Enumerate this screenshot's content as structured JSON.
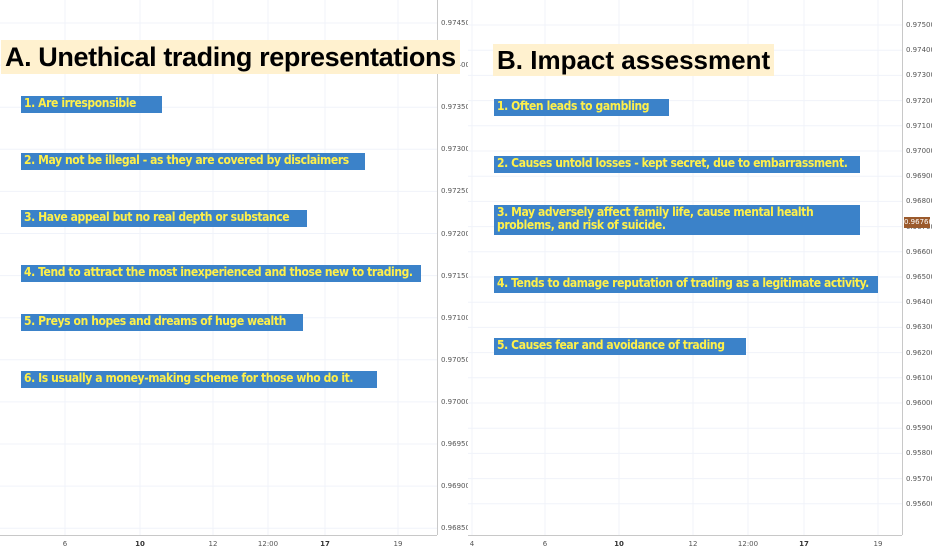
{
  "panel_a": {
    "title": "A. Unethical trading representations",
    "items": [
      "1. Are irresponsible",
      "2. May not be illegal - as they are covered by disclaimers",
      "3. Have appeal but no real  depth or substance",
      "4. Tend to attract the most inexperienced and those new to trading.",
      "5. Preys on hopes and dreams of huge wealth",
      "6. Is usually a money-making scheme for those who do it."
    ],
    "y_axis_ticks": [
      "0.97450",
      "0.97400",
      "0.97350",
      "0.97300",
      "0.97250",
      "0.97200",
      "0.97150",
      "0.97100",
      "0.97050",
      "0.97000",
      "0.96950",
      "0.96900",
      "0.96850"
    ],
    "x_axis_ticks": [
      "6",
      "10",
      "12",
      "12:00",
      "17",
      "19"
    ]
  },
  "panel_b": {
    "title": "B. Impact assessment",
    "items": [
      "1. Often leads to gambling",
      "2. Causes untold losses - kept secret, due to embarrassment.",
      "3. May adversely affect family life, cause mental health problems, and risk of suicide.",
      "4. Tends to damage reputation of trading as a legitimate activity.",
      "5. Causes fear and avoidance of trading"
    ],
    "y_axis_ticks": [
      "0.97500",
      "0.97400",
      "0.97300",
      "0.97200",
      "0.97100",
      "0.97000",
      "0.96900",
      "0.96800",
      "0.96700",
      "0.96600",
      "0.96500",
      "0.96400",
      "0.96300",
      "0.96200",
      "0.96100",
      "0.96000",
      "0.95900",
      "0.95800",
      "0.95700",
      "0.95600"
    ],
    "x_axis_ticks": [
      "4",
      "6",
      "10",
      "12",
      "12:00",
      "17",
      "19"
    ],
    "price_marker": "0.96760"
  },
  "colors": {
    "item_bg": "#3b82c9",
    "item_text": "#fff04a",
    "title_bg": "#fff1cf",
    "price_marker_bg": "#9b5a2c"
  }
}
